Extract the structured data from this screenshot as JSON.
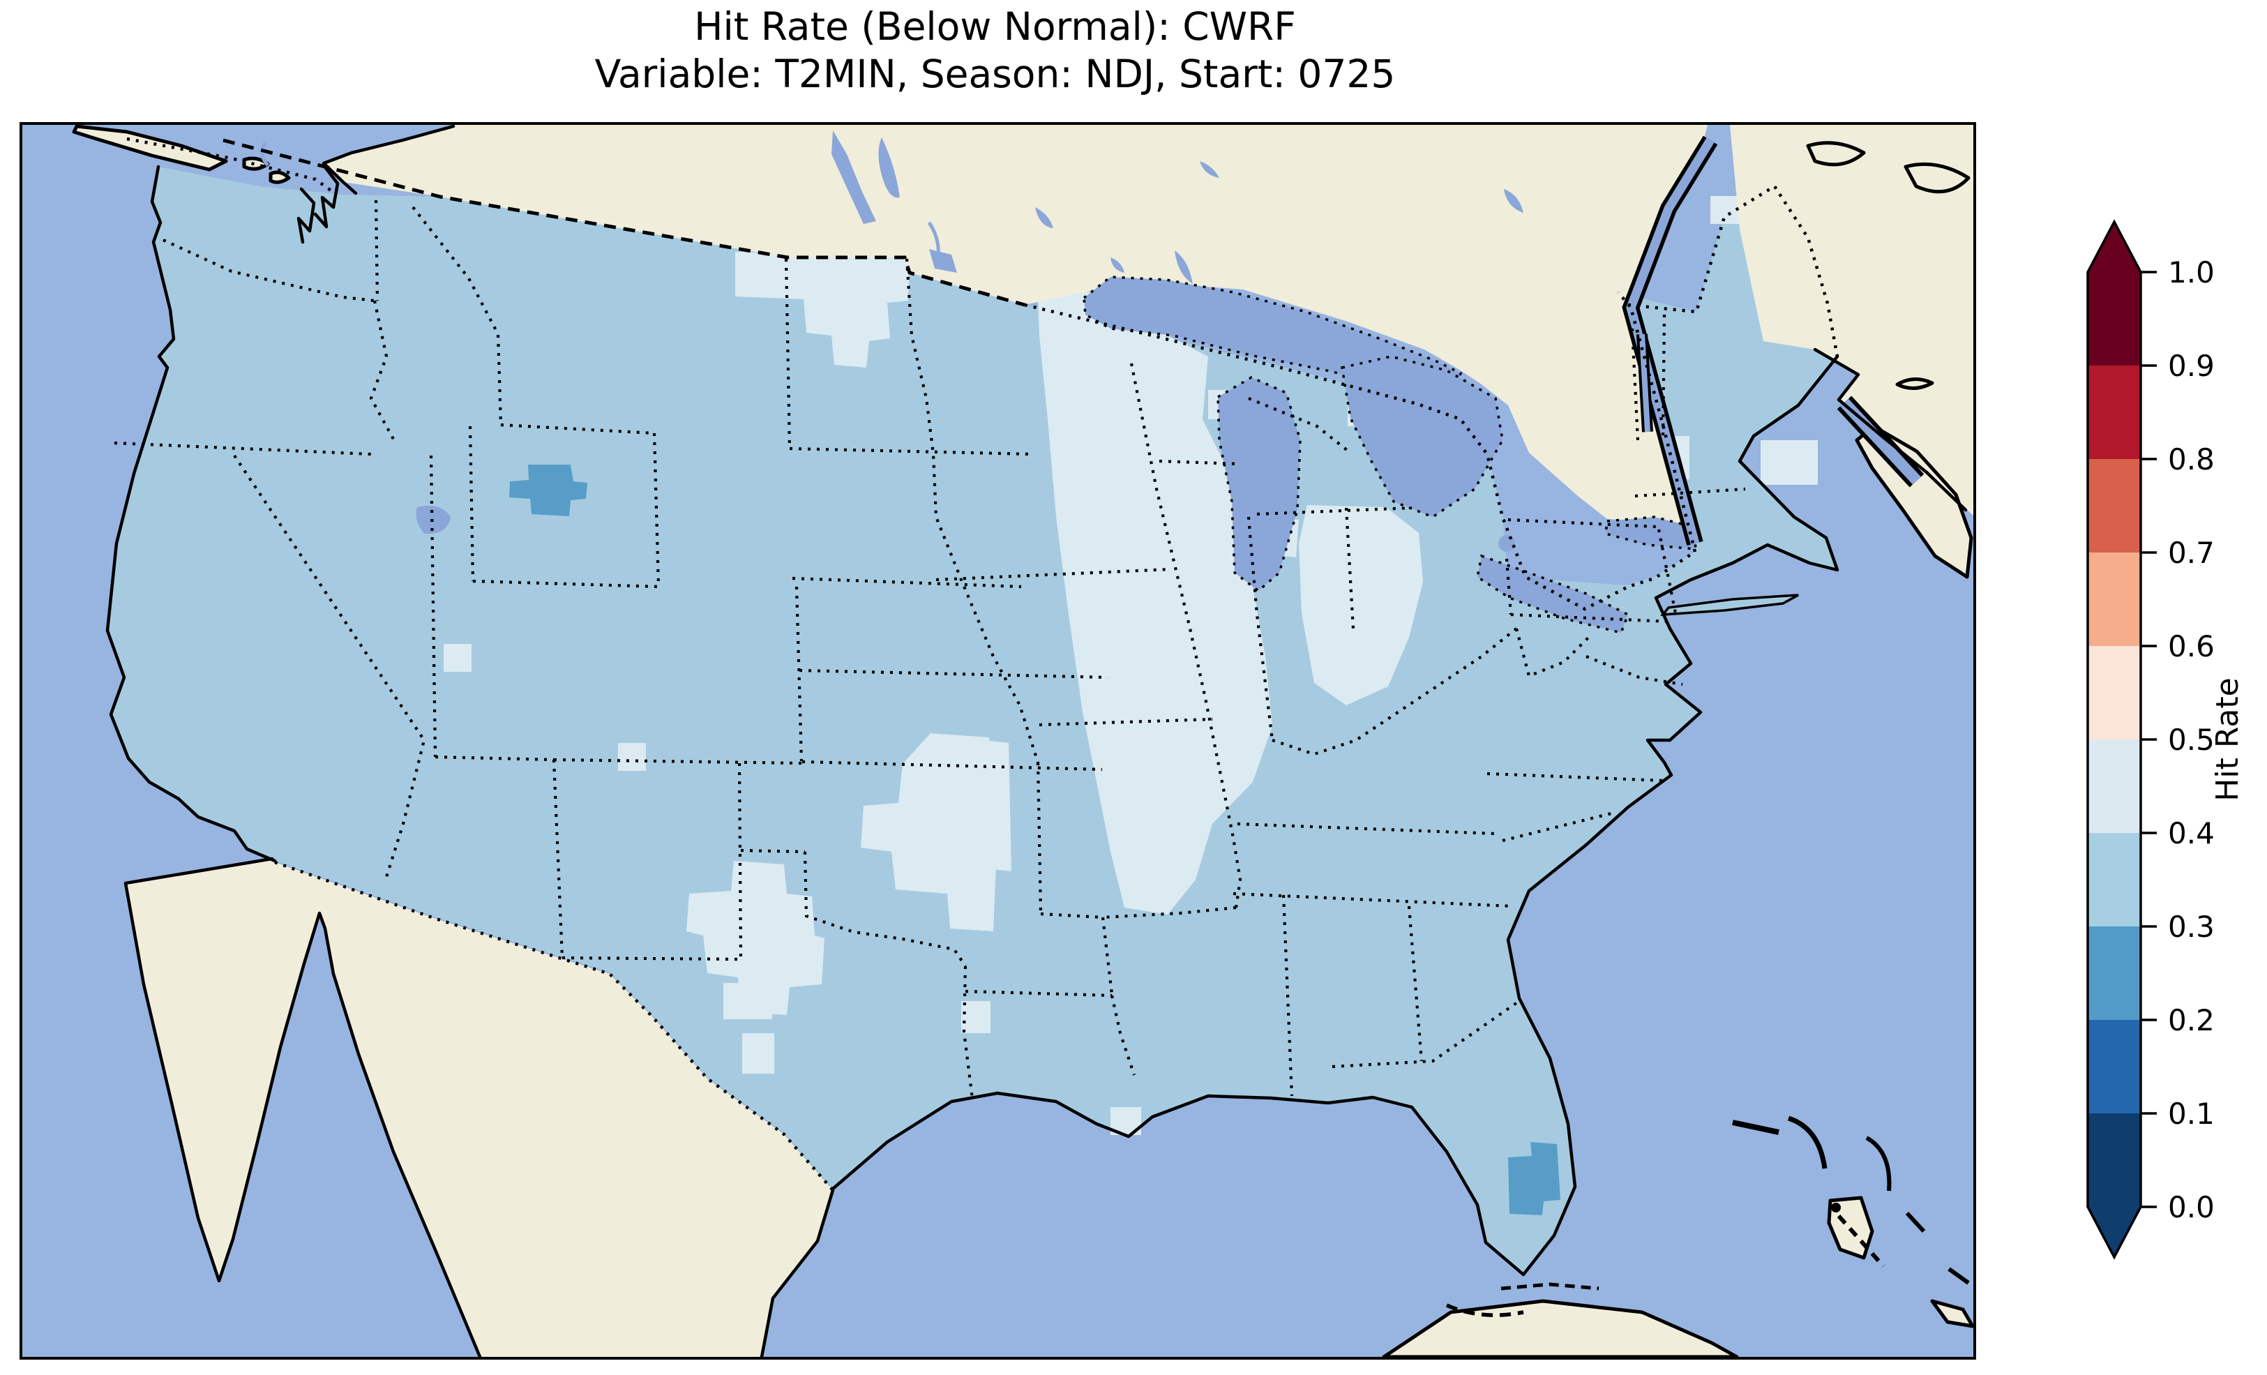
{
  "figure": {
    "title_line1": "Hit Rate (Below Normal): CWRF",
    "title_line2": "Variable: T2MIN, Season: NDJ, Start: 0725"
  },
  "colorbar": {
    "label": "Hit Rate",
    "orientation": "vertical",
    "tick_labels": [
      "1.0",
      "0.9",
      "0.8",
      "0.7",
      "0.6",
      "0.5",
      "0.4",
      "0.3",
      "0.2",
      "0.1",
      "0.0"
    ],
    "bins": [
      {
        "range": "0.9-1.0",
        "color": "#68001f"
      },
      {
        "range": "0.8-0.9",
        "color": "#b2182b"
      },
      {
        "range": "0.7-0.8",
        "color": "#d8604c"
      },
      {
        "range": "0.6-0.7",
        "color": "#f6ad8b"
      },
      {
        "range": "0.5-0.6",
        "color": "#fae5d8"
      },
      {
        "range": "0.4-0.5",
        "color": "#dde9f1"
      },
      {
        "range": "0.3-0.4",
        "color": "#a7cee3"
      },
      {
        "range": "0.2-0.3",
        "color": "#529bc7"
      },
      {
        "range": "0.1-0.2",
        "color": "#2467ad"
      },
      {
        "range": "0.0-0.1",
        "color": "#0e3d6e"
      }
    ]
  },
  "map": {
    "colors": {
      "ocean": "#98b4e0",
      "land": "#f0eddb",
      "lake": "#8ba7d9",
      "cell_base": "#a6cbe0",
      "cell_pale": "#dceaf2",
      "cell_dark": "#579dc8",
      "coast": "#000000"
    },
    "region": "Continental United States with surrounding Canada, Mexico, Cuba and Bahamas",
    "style": "dotted state borders, dashed international borders, solid coastlines"
  },
  "chart_data": {
    "type": "heatmap",
    "title": "Hit Rate (Below Normal): CWRF",
    "subtitle": "Variable: T2MIN, Season: NDJ, Start: 0725",
    "model": "CWRF",
    "metric": "Hit Rate (Below Normal)",
    "variable": "T2MIN",
    "season": "NDJ",
    "start": "0725",
    "domain": "Contiguous United States (gridded cells)",
    "colorbar": {
      "label": "Hit Rate",
      "range": [
        0.0,
        1.0
      ],
      "ticks": [
        0.0,
        0.1,
        0.2,
        0.3,
        0.4,
        0.5,
        0.6,
        0.7,
        0.8,
        0.9,
        1.0
      ],
      "extend": "both",
      "bin_colors_low_to_high": [
        "#0e3d6e",
        "#2467ad",
        "#529bc7",
        "#a7cee3",
        "#dde9f1",
        "#fae5d8",
        "#f6ad8b",
        "#d8604c",
        "#b2182b",
        "#68001f"
      ]
    },
    "values_summary": [
      {
        "region": "Most of CONUS (West, Southeast, East, Gulf states)",
        "hit_rate_bin": "0.3-0.4"
      },
      {
        "region": "Upper Midwest: Minnesota, Iowa, Wisconsin, Illinois, Missouri, lower Michigan",
        "hit_rate_bin": "0.4-0.5"
      },
      {
        "region": "Central Plains: Nebraska, Kansas, Oklahoma",
        "hit_rate_bin": "0.4-0.5"
      },
      {
        "region": "Eastern New Mexico / West Texas",
        "hit_rate_bin": "0.4-0.5"
      },
      {
        "region": "North Dakota / northern Minnesota near Canadian border",
        "hit_rate_bin": "0.4-0.5"
      },
      {
        "region": "Ozarks (eastern Oklahoma / Arkansas strip)",
        "hit_rate_bin": "0.4-0.5"
      },
      {
        "region": "Scattered cells: New England, northern Maine, Utah, south Texas",
        "hit_rate_bin": "0.4-0.5"
      },
      {
        "region": "Central Wyoming cluster",
        "hit_rate_bin": "0.2-0.3"
      },
      {
        "region": "South Florida (Lake Okeechobee area)",
        "hit_rate_bin": "0.2-0.3"
      }
    ]
  }
}
